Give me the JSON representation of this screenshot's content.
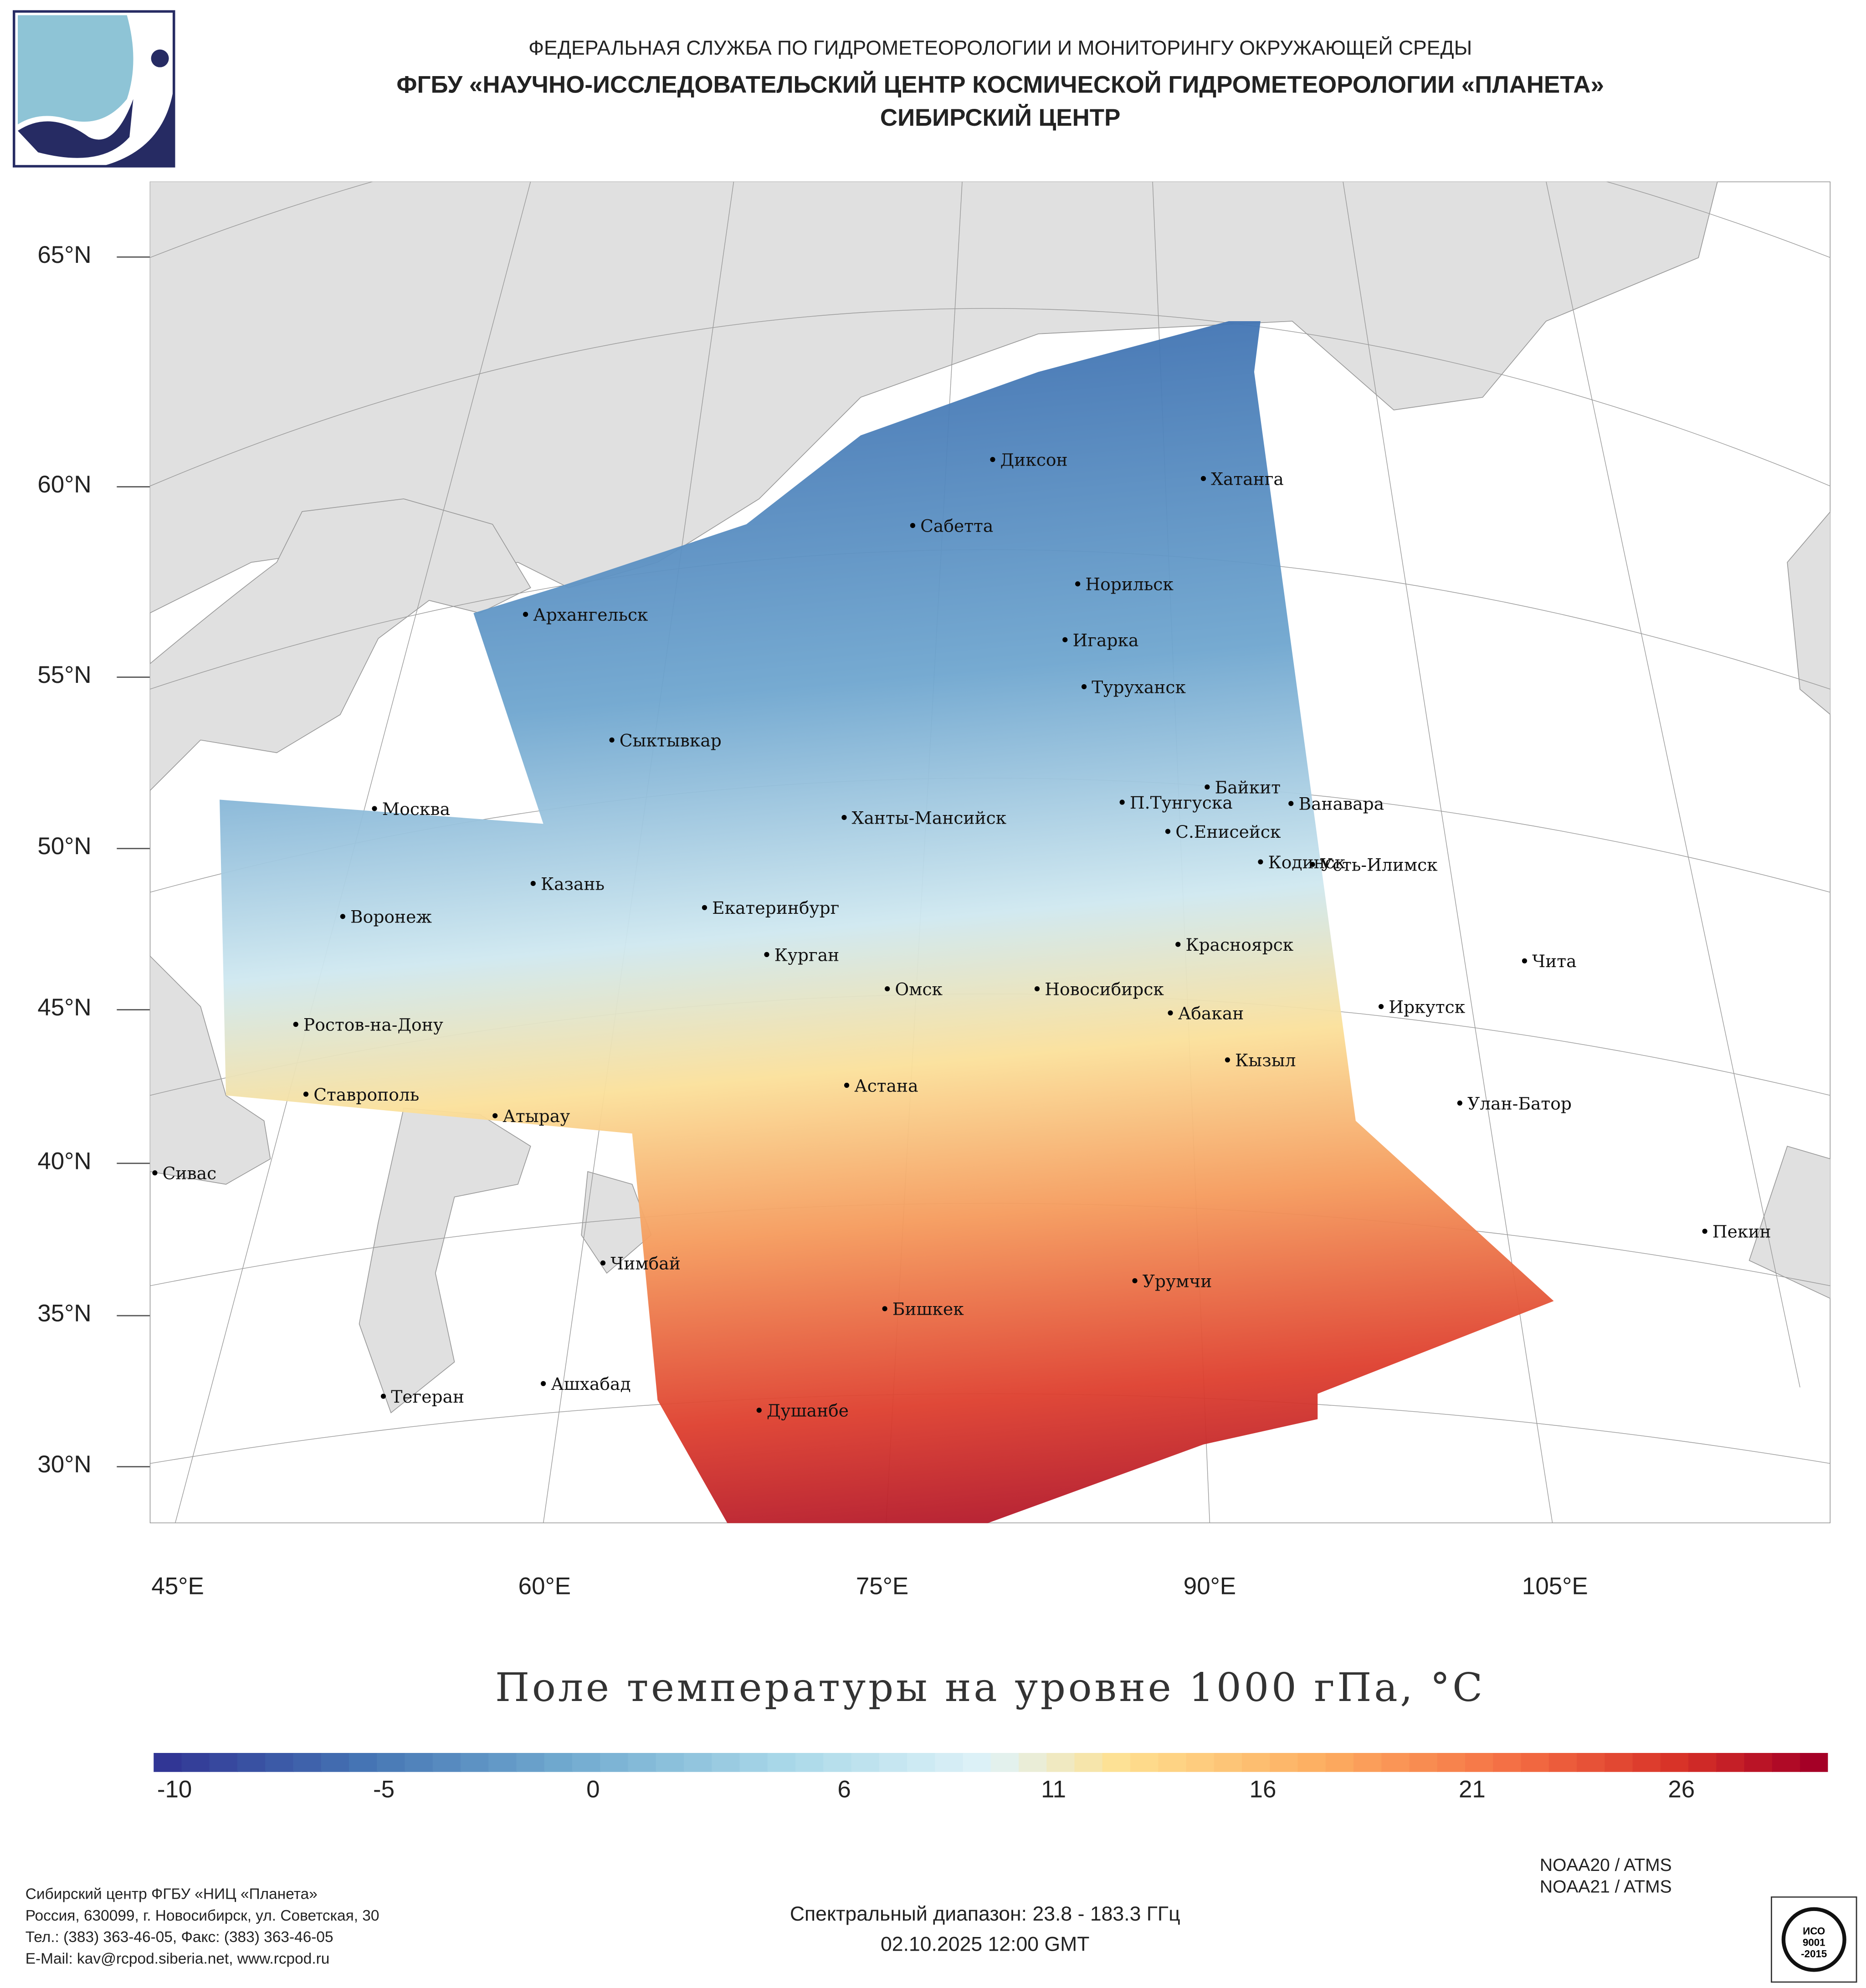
{
  "header": {
    "line1": "ФЕДЕРАЛЬНАЯ СЛУЖБА ПО ГИДРОМЕТЕОРОЛОГИИ И МОНИТОРИНГУ ОКРУЖАЮЩЕЙ СРЕДЫ",
    "line2": "ФГБУ «НАУЧНО-ИССЛЕДОВАТЕЛЬСКИЙ ЦЕНТР КОСМИЧЕСКОЙ ГИДРОМЕТЕОРОЛОГИИ «ПЛАНЕТА»",
    "line3": "СИБИРСКИЙ ЦЕНТР"
  },
  "map": {
    "lat_labels": [
      "65°N",
      "60°N",
      "55°N",
      "50°N",
      "45°N",
      "40°N",
      "35°N",
      "30°N"
    ],
    "lon_labels": [
      "45°E",
      "60°E",
      "75°E",
      "90°E",
      "105°E"
    ],
    "cities": [
      "Диксон",
      "Хатанга",
      "Сабетта",
      "Архангельск",
      "Норильск",
      "Игарка",
      "Туруханск",
      "Сыктывкар",
      "Байкит",
      "П.Тунгуска",
      "Ванавара",
      "Москва",
      "Ханты-Мансийск",
      "С.Енисейск",
      "Кодинск",
      "Усть-Илимск",
      "Казань",
      "Екатеринбург",
      "Воронеж",
      "Красноярск",
      "Курган",
      "Чита",
      "Омск",
      "Новосибирск",
      "Иркутск",
      "Абакан",
      "Ростов-на-Дону",
      "Кызыл",
      "Ставрополь",
      "Астана",
      "Улан-Батор",
      "Атырау",
      "Сивас",
      "Пекин",
      "Чимбай",
      "Урумчи",
      "Бишкек",
      "Ашхабад",
      "Тегеран",
      "Душанбе"
    ]
  },
  "title": "Поле температуры на уровне 1000 гПа, °С",
  "colorbar": {
    "ticks": [
      "-10",
      "-5",
      "0",
      "6",
      "11",
      "16",
      "21",
      "26"
    ],
    "min": -10.5,
    "max": 29.5,
    "palette": "RdYlBu reversed",
    "low_color": "#313695",
    "high_color": "#a50026"
  },
  "footer": {
    "org": [
      "Сибирский центр ФГБУ «НИЦ «Планета»",
      "Россия, 630099, г. Новосибирск, ул. Советская, 30",
      "Тел.: (383) 363-46-05, Факс: (383) 363-46-05",
      "E-Mail: kav@rcpod.siberia.net, www.rcpod.ru"
    ],
    "spectral": "Спектральный диапазон: 23.8 - 183.3 ГГц",
    "datetime": "02.10.2025 12:00 GMT",
    "satellites": [
      "NOAA20 / ATMS",
      "NOAA21 / ATMS"
    ]
  }
}
